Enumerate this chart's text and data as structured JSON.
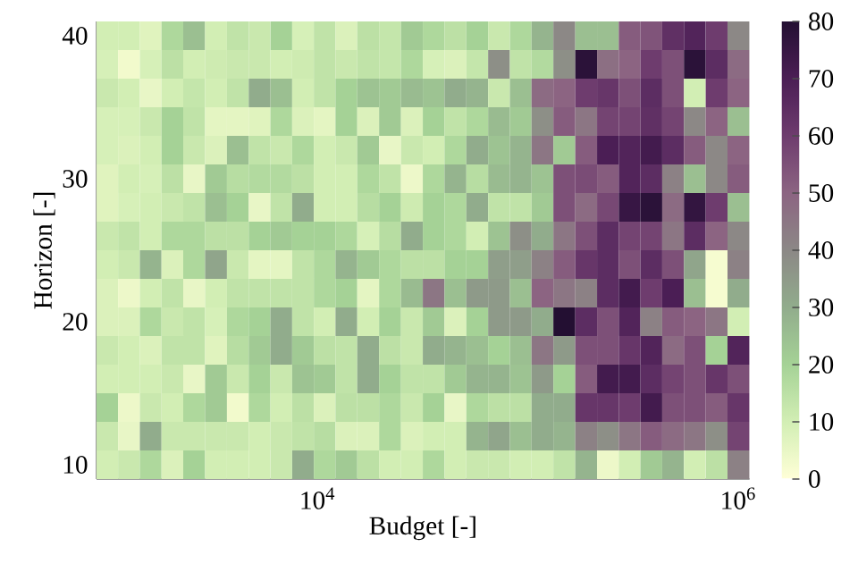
{
  "chart_data": {
    "type": "heatmap",
    "xlabel": "Budget [-]",
    "ylabel": "Horizon [-]",
    "x": [
      1000,
      1270,
      1610,
      2040,
      2590,
      3290,
      4180,
      5300,
      6720,
      8530,
      10800,
      13700,
      17400,
      22100,
      28100,
      35600,
      45200,
      57400,
      72800,
      92400,
      117000,
      149000,
      189000,
      240000,
      304000,
      386000,
      489000,
      621000,
      788000,
      1000000
    ],
    "y_categories": [
      "40",
      null,
      null,
      null,
      null,
      "30",
      null,
      null,
      null,
      null,
      "20",
      null,
      null,
      null,
      null,
      "10"
    ],
    "cells": [
      [
        10,
        10,
        7,
        18,
        25,
        10,
        14,
        12,
        20,
        9,
        14,
        8,
        15,
        13,
        22,
        18,
        15,
        20,
        12,
        18,
        28,
        40,
        25,
        25,
        52,
        54,
        64,
        68,
        60,
        40
      ],
      [
        9,
        3,
        9,
        15,
        10,
        11,
        12,
        12,
        10,
        11,
        14,
        12,
        14,
        13,
        18,
        9,
        8,
        13,
        38,
        14,
        17,
        38,
        78,
        47,
        50,
        60,
        55,
        78,
        65,
        48
      ],
      [
        12,
        10,
        5,
        10,
        13,
        10,
        14,
        30,
        25,
        10,
        14,
        20,
        24,
        22,
        26,
        24,
        30,
        28,
        12,
        25,
        48,
        50,
        60,
        62,
        55,
        65,
        55,
        10,
        60,
        50
      ],
      [
        9,
        9,
        12,
        20,
        14,
        6,
        6,
        7,
        18,
        8,
        6,
        20,
        8,
        22,
        8,
        20,
        14,
        18,
        26,
        22,
        38,
        52,
        45,
        58,
        58,
        64,
        58,
        40,
        50,
        25
      ],
      [
        9,
        8,
        10,
        20,
        12,
        8,
        25,
        14,
        12,
        18,
        10,
        12,
        22,
        5,
        12,
        10,
        18,
        30,
        24,
        28,
        45,
        22,
        52,
        70,
        68,
        72,
        65,
        52,
        40,
        50
      ],
      [
        7,
        10,
        9,
        15,
        5,
        22,
        16,
        17,
        17,
        15,
        10,
        10,
        18,
        14,
        4,
        18,
        28,
        16,
        26,
        28,
        24,
        55,
        56,
        52,
        68,
        65,
        42,
        25,
        40,
        52
      ],
      [
        7,
        9,
        10,
        12,
        14,
        25,
        20,
        5,
        14,
        30,
        10,
        10,
        16,
        20,
        11,
        20,
        18,
        30,
        14,
        14,
        22,
        55,
        48,
        57,
        75,
        78,
        48,
        76,
        60,
        25
      ],
      [
        12,
        14,
        10,
        18,
        18,
        15,
        15,
        20,
        22,
        20,
        20,
        18,
        9,
        16,
        30,
        20,
        18,
        10,
        24,
        38,
        30,
        45,
        55,
        65,
        58,
        58,
        45,
        65,
        50,
        40
      ],
      [
        10,
        12,
        28,
        8,
        18,
        32,
        12,
        6,
        6,
        14,
        18,
        28,
        22,
        18,
        15,
        15,
        20,
        20,
        34,
        34,
        42,
        52,
        62,
        65,
        55,
        65,
        55,
        32,
        2,
        42
      ],
      [
        8,
        4,
        10,
        14,
        5,
        10,
        14,
        14,
        14,
        14,
        18,
        20,
        6,
        18,
        26,
        45,
        25,
        35,
        35,
        25,
        50,
        45,
        42,
        65,
        72,
        60,
        70,
        25,
        2,
        30
      ],
      [
        8,
        8,
        18,
        12,
        14,
        9,
        18,
        20,
        30,
        14,
        10,
        30,
        10,
        20,
        12,
        22,
        8,
        20,
        35,
        35,
        30,
        80,
        65,
        55,
        68,
        42,
        52,
        50,
        45,
        10
      ],
      [
        12,
        10,
        8,
        14,
        14,
        7,
        16,
        22,
        30,
        22,
        15,
        14,
        30,
        15,
        12,
        30,
        28,
        25,
        20,
        25,
        45,
        35,
        55,
        55,
        62,
        68,
        48,
        55,
        20,
        68
      ],
      [
        10,
        10,
        10,
        12,
        5,
        22,
        12,
        20,
        12,
        24,
        22,
        14,
        30,
        20,
        14,
        14,
        22,
        28,
        28,
        24,
        35,
        20,
        52,
        72,
        72,
        65,
        58,
        55,
        62,
        55
      ],
      [
        20,
        4,
        12,
        10,
        18,
        22,
        3,
        18,
        10,
        15,
        8,
        15,
        15,
        18,
        12,
        20,
        5,
        18,
        15,
        15,
        30,
        30,
        62,
        62,
        60,
        72,
        55,
        55,
        52,
        62
      ],
      [
        12,
        5,
        30,
        12,
        12,
        12,
        12,
        10,
        12,
        14,
        16,
        8,
        8,
        18,
        8,
        10,
        10,
        28,
        32,
        25,
        30,
        28,
        42,
        38,
        45,
        52,
        48,
        45,
        38,
        58
      ],
      [
        10,
        12,
        18,
        8,
        20,
        10,
        10,
        10,
        12,
        30,
        18,
        22,
        15,
        10,
        10,
        18,
        10,
        12,
        12,
        10,
        10,
        14,
        28,
        4,
        10,
        22,
        28,
        10,
        15,
        42
      ]
    ],
    "xlim": [
      890,
      1130000
    ],
    "xticks": [
      {
        "value": 10000,
        "label": "10$^{4}$"
      },
      {
        "value": 1000000,
        "label": "10$^{6}$"
      }
    ],
    "clim": [
      0,
      80
    ],
    "cticks": [
      0,
      10,
      20,
      30,
      40,
      50,
      60,
      70,
      80
    ],
    "log": "x",
    "grid": false
  }
}
